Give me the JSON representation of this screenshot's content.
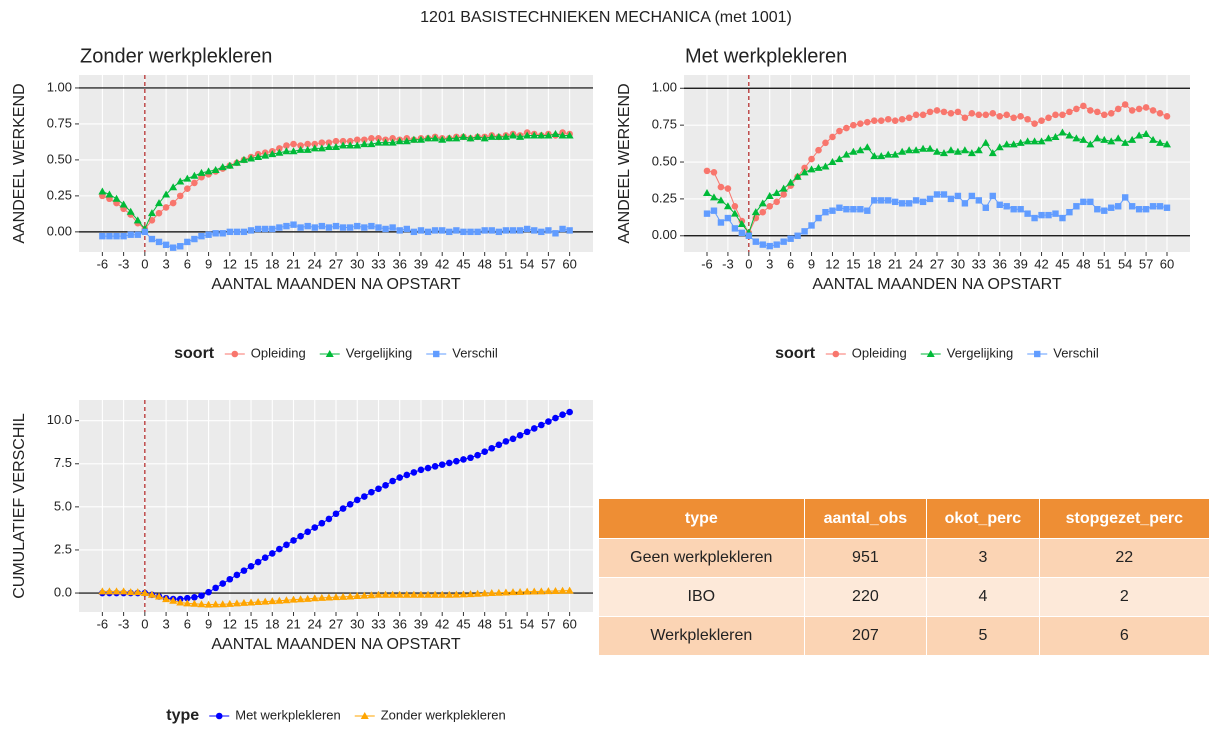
{
  "title": "1201 BASISTECHNIEKEN MECHANICA (met 1001)",
  "chart_data": [
    {
      "type": "line",
      "title": "Zonder werkplekleren",
      "xlabel": "AANTAL MAANDEN NA OPSTART",
      "ylabel": "AANDEEL WERKEND",
      "legend_title": "soort",
      "legend": "bottom",
      "grid": true,
      "xlim": [
        -9.3,
        63.3
      ],
      "ylim": [
        -0.14,
        1.09
      ],
      "xticks": [
        -6,
        -3,
        0,
        3,
        6,
        9,
        12,
        15,
        18,
        21,
        24,
        27,
        30,
        33,
        36,
        39,
        42,
        45,
        48,
        51,
        54,
        57,
        60
      ],
      "yticks": [
        {
          "value": 0,
          "label": "0.00"
        },
        {
          "value": 0.25,
          "label": "0.25"
        },
        {
          "value": 0.5,
          "label": "0.50"
        },
        {
          "value": 0.75,
          "label": "0.75"
        },
        {
          "value": 1,
          "label": "1.00"
        }
      ],
      "hlines": [
        0,
        1
      ],
      "vline": 0,
      "x": [
        -6,
        -5,
        -4,
        -3,
        -2,
        -1,
        0,
        1,
        2,
        3,
        4,
        5,
        6,
        7,
        8,
        9,
        10,
        11,
        12,
        13,
        14,
        15,
        16,
        17,
        18,
        19,
        20,
        21,
        22,
        23,
        24,
        25,
        26,
        27,
        28,
        29,
        30,
        31,
        32,
        33,
        34,
        35,
        36,
        37,
        38,
        39,
        40,
        41,
        42,
        43,
        44,
        45,
        46,
        47,
        48,
        49,
        50,
        51,
        52,
        53,
        54,
        55,
        56,
        57,
        58,
        59,
        60
      ],
      "series": [
        {
          "name": "Opleiding",
          "color": "#F8766D",
          "marker": "circle",
          "values": [
            0.25,
            0.23,
            0.2,
            0.16,
            0.12,
            0.06,
            0.02,
            0.08,
            0.13,
            0.17,
            0.2,
            0.25,
            0.3,
            0.34,
            0.38,
            0.4,
            0.42,
            0.44,
            0.46,
            0.48,
            0.5,
            0.52,
            0.54,
            0.55,
            0.56,
            0.58,
            0.6,
            0.61,
            0.6,
            0.61,
            0.61,
            0.62,
            0.62,
            0.63,
            0.63,
            0.63,
            0.64,
            0.64,
            0.65,
            0.65,
            0.64,
            0.65,
            0.64,
            0.65,
            0.64,
            0.65,
            0.65,
            0.66,
            0.65,
            0.65,
            0.66,
            0.66,
            0.65,
            0.66,
            0.66,
            0.67,
            0.66,
            0.67,
            0.68,
            0.67,
            0.69,
            0.68,
            0.67,
            0.68,
            0.67,
            0.69,
            0.68
          ]
        },
        {
          "name": "Vergelijking",
          "color": "#00BA38",
          "marker": "triangle",
          "values": [
            0.28,
            0.26,
            0.23,
            0.19,
            0.14,
            0.08,
            0.02,
            0.13,
            0.2,
            0.26,
            0.31,
            0.35,
            0.37,
            0.39,
            0.41,
            0.42,
            0.43,
            0.45,
            0.46,
            0.48,
            0.5,
            0.51,
            0.52,
            0.53,
            0.54,
            0.55,
            0.56,
            0.56,
            0.57,
            0.57,
            0.58,
            0.58,
            0.59,
            0.59,
            0.6,
            0.6,
            0.6,
            0.61,
            0.61,
            0.62,
            0.62,
            0.62,
            0.63,
            0.63,
            0.64,
            0.64,
            0.65,
            0.65,
            0.64,
            0.65,
            0.65,
            0.66,
            0.65,
            0.66,
            0.65,
            0.66,
            0.66,
            0.66,
            0.67,
            0.66,
            0.67,
            0.67,
            0.67,
            0.67,
            0.68,
            0.67,
            0.67
          ]
        },
        {
          "name": "Verschil",
          "color": "#619CFF",
          "marker": "square",
          "values": [
            -0.03,
            -0.03,
            -0.03,
            -0.03,
            -0.02,
            -0.02,
            0,
            -0.05,
            -0.07,
            -0.09,
            -0.11,
            -0.1,
            -0.07,
            -0.05,
            -0.03,
            -0.02,
            -0.01,
            -0.01,
            0,
            0,
            0,
            0.01,
            0.02,
            0.02,
            0.02,
            0.03,
            0.04,
            0.05,
            0.03,
            0.04,
            0.03,
            0.04,
            0.03,
            0.04,
            0.03,
            0.03,
            0.04,
            0.03,
            0.04,
            0.03,
            0.02,
            0.03,
            0.01,
            0.02,
            0,
            0.01,
            0,
            0.01,
            0.01,
            0,
            0.01,
            0,
            0,
            0,
            0.01,
            0.01,
            0,
            0.01,
            0.01,
            0.01,
            0.02,
            0.01,
            0,
            0.01,
            -0.01,
            0.02,
            0.01
          ]
        }
      ]
    },
    {
      "type": "line",
      "title": "Met werkplekleren",
      "xlabel": "AANTAL MAANDEN NA OPSTART",
      "ylabel": "AANDEEL WERKEND",
      "legend_title": "soort",
      "legend": "bottom",
      "grid": true,
      "xlim": [
        -9.3,
        63.3
      ],
      "ylim": [
        -0.11,
        1.09
      ],
      "xticks": [
        -6,
        -3,
        0,
        3,
        6,
        9,
        12,
        15,
        18,
        21,
        24,
        27,
        30,
        33,
        36,
        39,
        42,
        45,
        48,
        51,
        54,
        57,
        60
      ],
      "yticks": [
        {
          "value": 0,
          "label": "0.00"
        },
        {
          "value": 0.25,
          "label": "0.25"
        },
        {
          "value": 0.5,
          "label": "0.50"
        },
        {
          "value": 0.75,
          "label": "0.75"
        },
        {
          "value": 1,
          "label": "1.00"
        }
      ],
      "hlines": [
        0,
        1
      ],
      "vline": 0,
      "x": [
        -6,
        -5,
        -4,
        -3,
        -2,
        -1,
        0,
        1,
        2,
        3,
        4,
        5,
        6,
        7,
        8,
        9,
        10,
        11,
        12,
        13,
        14,
        15,
        16,
        17,
        18,
        19,
        20,
        21,
        22,
        23,
        24,
        25,
        26,
        27,
        28,
        29,
        30,
        31,
        32,
        33,
        34,
        35,
        36,
        37,
        38,
        39,
        40,
        41,
        42,
        43,
        44,
        45,
        46,
        47,
        48,
        49,
        50,
        51,
        52,
        53,
        54,
        55,
        56,
        57,
        58,
        59,
        60
      ],
      "series": [
        {
          "name": "Opleiding",
          "color": "#F8766D",
          "marker": "circle",
          "values": [
            0.44,
            0.43,
            0.33,
            0.32,
            0.2,
            0.1,
            0.02,
            0.12,
            0.16,
            0.2,
            0.23,
            0.28,
            0.34,
            0.4,
            0.46,
            0.52,
            0.58,
            0.63,
            0.67,
            0.71,
            0.73,
            0.75,
            0.76,
            0.77,
            0.78,
            0.78,
            0.79,
            0.78,
            0.79,
            0.8,
            0.82,
            0.82,
            0.84,
            0.85,
            0.84,
            0.83,
            0.84,
            0.8,
            0.83,
            0.82,
            0.82,
            0.83,
            0.81,
            0.82,
            0.8,
            0.81,
            0.79,
            0.76,
            0.78,
            0.8,
            0.82,
            0.82,
            0.84,
            0.86,
            0.88,
            0.85,
            0.84,
            0.82,
            0.83,
            0.86,
            0.89,
            0.85,
            0.86,
            0.87,
            0.85,
            0.83,
            0.81
          ]
        },
        {
          "name": "Vergelijking",
          "color": "#00BA38",
          "marker": "triangle",
          "values": [
            0.29,
            0.26,
            0.24,
            0.2,
            0.15,
            0.08,
            0.02,
            0.16,
            0.22,
            0.27,
            0.29,
            0.32,
            0.36,
            0.4,
            0.43,
            0.45,
            0.46,
            0.47,
            0.5,
            0.52,
            0.55,
            0.57,
            0.58,
            0.6,
            0.54,
            0.54,
            0.55,
            0.55,
            0.57,
            0.58,
            0.58,
            0.59,
            0.59,
            0.57,
            0.56,
            0.58,
            0.57,
            0.58,
            0.56,
            0.58,
            0.63,
            0.56,
            0.6,
            0.62,
            0.62,
            0.63,
            0.64,
            0.64,
            0.64,
            0.66,
            0.67,
            0.7,
            0.68,
            0.66,
            0.65,
            0.62,
            0.66,
            0.65,
            0.64,
            0.66,
            0.63,
            0.65,
            0.68,
            0.69,
            0.65,
            0.63,
            0.62
          ]
        },
        {
          "name": "Verschil",
          "color": "#619CFF",
          "marker": "square",
          "values": [
            0.15,
            0.17,
            0.09,
            0.12,
            0.05,
            0.02,
            0,
            -0.04,
            -0.06,
            -0.07,
            -0.06,
            -0.04,
            -0.02,
            0,
            0.03,
            0.07,
            0.12,
            0.16,
            0.17,
            0.19,
            0.18,
            0.18,
            0.18,
            0.17,
            0.24,
            0.24,
            0.24,
            0.23,
            0.22,
            0.22,
            0.24,
            0.23,
            0.25,
            0.28,
            0.28,
            0.25,
            0.27,
            0.22,
            0.27,
            0.24,
            0.19,
            0.27,
            0.21,
            0.2,
            0.18,
            0.18,
            0.15,
            0.12,
            0.14,
            0.14,
            0.15,
            0.12,
            0.16,
            0.2,
            0.23,
            0.23,
            0.18,
            0.17,
            0.19,
            0.2,
            0.26,
            0.2,
            0.18,
            0.18,
            0.2,
            0.2,
            0.19
          ]
        }
      ]
    },
    {
      "type": "line",
      "xlabel": "AANTAL MAANDEN NA OPSTART",
      "ylabel": "CUMULATIEF VERSCHIL",
      "legend_title": "type",
      "legend": "bottom",
      "grid": true,
      "xlim": [
        -9.3,
        63.3
      ],
      "ylim": [
        -1.1,
        11.2
      ],
      "xticks": [
        -6,
        -3,
        0,
        3,
        6,
        9,
        12,
        15,
        18,
        21,
        24,
        27,
        30,
        33,
        36,
        39,
        42,
        45,
        48,
        51,
        54,
        57,
        60
      ],
      "yticks": [
        {
          "value": 0,
          "label": "0.0"
        },
        2.5,
        {
          "value": 5,
          "label": "5.0"
        },
        7.5,
        {
          "value": 10,
          "label": "10.0"
        }
      ],
      "hlines": [
        0
      ],
      "vline": 0,
      "x": [
        -6,
        -5,
        -4,
        -3,
        -2,
        -1,
        0,
        1,
        2,
        3,
        4,
        5,
        6,
        7,
        8,
        9,
        10,
        11,
        12,
        13,
        14,
        15,
        16,
        17,
        18,
        19,
        20,
        21,
        22,
        23,
        24,
        25,
        26,
        27,
        28,
        29,
        30,
        31,
        32,
        33,
        34,
        35,
        36,
        37,
        38,
        39,
        40,
        41,
        42,
        43,
        44,
        45,
        46,
        47,
        48,
        49,
        50,
        51,
        52,
        53,
        54,
        55,
        56,
        57,
        58,
        59,
        60
      ],
      "series": [
        {
          "name": "Met werkplekleren",
          "color": "#0000FF",
          "marker": "circle",
          "values": [
            0,
            0,
            0,
            0,
            0,
            0,
            0,
            -0.1,
            -0.2,
            -0.3,
            -0.35,
            -0.35,
            -0.3,
            -0.25,
            -0.15,
            0.05,
            0.3,
            0.55,
            0.8,
            1.05,
            1.3,
            1.55,
            1.8,
            2.05,
            2.3,
            2.55,
            2.8,
            3.05,
            3.3,
            3.55,
            3.8,
            4.05,
            4.3,
            4.6,
            4.9,
            5.15,
            5.4,
            5.6,
            5.85,
            6.05,
            6.25,
            6.5,
            6.7,
            6.85,
            7,
            7.15,
            7.25,
            7.35,
            7.45,
            7.55,
            7.65,
            7.75,
            7.85,
            8,
            8.2,
            8.4,
            8.6,
            8.8,
            8.95,
            9.15,
            9.35,
            9.55,
            9.75,
            9.95,
            10.15,
            10.35,
            10.5
          ]
        },
        {
          "name": "Zonder werkplekleren",
          "color": "#FFA500",
          "marker": "triangle",
          "values": [
            0.1,
            0.1,
            0.1,
            0.1,
            0.05,
            0.05,
            0,
            -0.1,
            -0.2,
            -0.35,
            -0.45,
            -0.55,
            -0.6,
            -0.62,
            -0.65,
            -0.67,
            -0.66,
            -0.65,
            -0.63,
            -0.6,
            -0.57,
            -0.55,
            -0.52,
            -0.5,
            -0.47,
            -0.45,
            -0.42,
            -0.38,
            -0.36,
            -0.34,
            -0.3,
            -0.28,
            -0.26,
            -0.24,
            -0.22,
            -0.2,
            -0.17,
            -0.15,
            -0.13,
            -0.1,
            -0.1,
            -0.1,
            -0.1,
            -0.1,
            -0.1,
            -0.1,
            -0.1,
            -0.1,
            -0.1,
            -0.1,
            -0.09,
            -0.08,
            -0.06,
            -0.04,
            -0.02,
            0,
            0.02,
            0.03,
            0.05,
            0.06,
            0.08,
            0.09,
            0.1,
            0.11,
            0.12,
            0.13,
            0.14
          ]
        }
      ]
    }
  ],
  "table": {
    "header": [
      "type",
      "aantal_obs",
      "okot_perc",
      "stopgezet_perc"
    ],
    "rows": [
      [
        "Geen werkplekleren",
        "951",
        "3",
        "22"
      ],
      [
        "IBO",
        "220",
        "4",
        "2"
      ],
      [
        "Werkplekleren",
        "207",
        "5",
        "6"
      ]
    ]
  }
}
